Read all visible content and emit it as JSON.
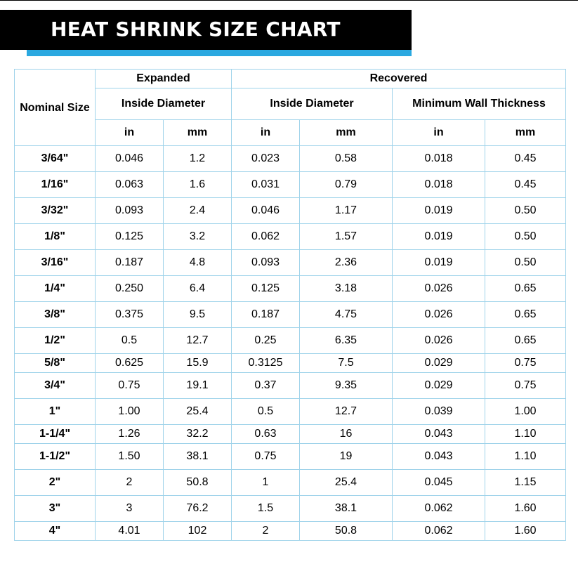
{
  "title": "HEAT SHRINK SIZE CHART",
  "colors": {
    "banner": "#000000",
    "accent": "#2aa8e0",
    "grid": "#9fd3ea"
  },
  "header": {
    "nominal_size": "Nominal Size",
    "expanded": "Expanded",
    "recovered": "Recovered",
    "expanded_inside_diameter": "Inside Diameter",
    "recovered_inside_diameter": "Inside Diameter",
    "minimum_wall_thickness": "Minimum Wall Thickness",
    "units": [
      "in",
      "mm",
      "in",
      "mm",
      "in",
      "mm"
    ]
  },
  "rows": [
    [
      "3/64\"",
      "0.046",
      "1.2",
      "0.023",
      "0.58",
      "0.018",
      "0.45"
    ],
    [
      "1/16\"",
      "0.063",
      "1.6",
      "0.031",
      "0.79",
      "0.018",
      "0.45"
    ],
    [
      "3/32\"",
      "0.093",
      "2.4",
      "0.046",
      "1.17",
      "0.019",
      "0.50"
    ],
    [
      "1/8\"",
      "0.125",
      "3.2",
      "0.062",
      "1.57",
      "0.019",
      "0.50"
    ],
    [
      "3/16\"",
      "0.187",
      "4.8",
      "0.093",
      "2.36",
      "0.019",
      "0.50"
    ],
    [
      "1/4\"",
      "0.250",
      "6.4",
      "0.125",
      "3.18",
      "0.026",
      "0.65"
    ],
    [
      "3/8\"",
      "0.375",
      "9.5",
      "0.187",
      "4.75",
      "0.026",
      "0.65"
    ],
    [
      "1/2\"",
      "0.5",
      "12.7",
      "0.25",
      "6.35",
      "0.026",
      "0.65"
    ],
    [
      "5/8\"",
      "0.625",
      "15.9",
      "0.3125",
      "7.5",
      "0.029",
      "0.75"
    ],
    [
      "3/4\"",
      "0.75",
      "19.1",
      "0.37",
      "9.35",
      "0.029",
      "0.75"
    ],
    [
      "1\"",
      "1.00",
      "25.4",
      "0.5",
      "12.7",
      "0.039",
      "1.00"
    ],
    [
      "1-1/4\"",
      "1.26",
      "32.2",
      "0.63",
      "16",
      "0.043",
      "1.10"
    ],
    [
      "1-1/2\"",
      "1.50",
      "38.1",
      "0.75",
      "19",
      "0.043",
      "1.10"
    ],
    [
      "2\"",
      "2",
      "50.8",
      "1",
      "25.4",
      "0.045",
      "1.15"
    ],
    [
      "3\"",
      "3",
      "76.2",
      "1.5",
      "38.1",
      "0.062",
      "1.60"
    ],
    [
      "4\"",
      "4.01",
      "102",
      "2",
      "50.8",
      "0.062",
      "1.60"
    ]
  ]
}
